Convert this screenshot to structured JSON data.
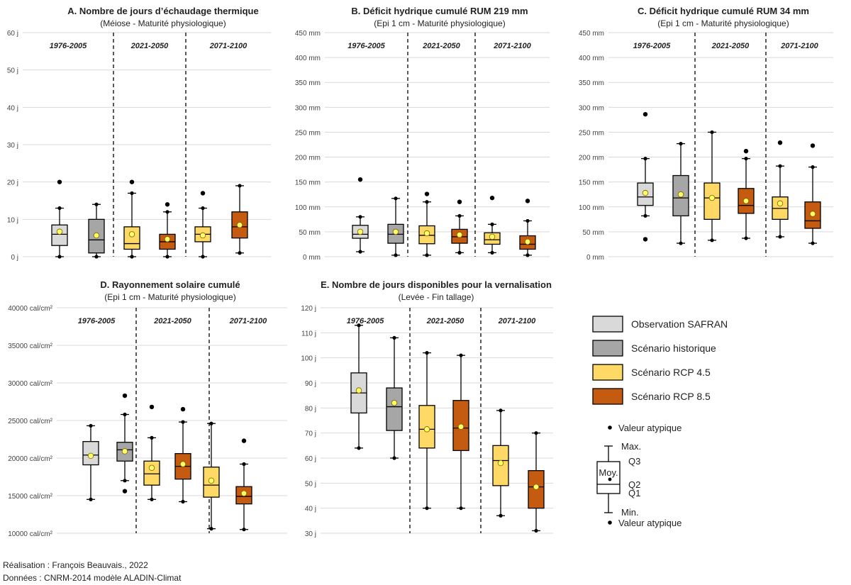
{
  "periods": [
    "1976-2005",
    "2021-2050",
    "2071-2100"
  ],
  "series_names": [
    "Observation SAFRAN",
    "Scénario historique",
    "Scénario RCP 4.5",
    "Scénario RCP 8.5"
  ],
  "colors": {
    "Observation SAFRAN": "#d9d9d9",
    "Scénario historique": "#a6a6a6",
    "Scénario RCP 4.5": "#ffd966",
    "Scénario RCP 8.5": "#c55a11",
    "mean_marker": "#ffff66",
    "divider": "#000000"
  },
  "chart_data": [
    {
      "id": "A",
      "type": "box",
      "title": "A. Nombre de jours d’échaudage thermique",
      "subtitle": "(Méiose - Maturité physiologique)",
      "ylim": [
        0,
        60
      ],
      "yticks": [
        0,
        10,
        20,
        30,
        40,
        50,
        60
      ],
      "yticklabels": [
        "0 j",
        "10 j",
        "20 j",
        "30 j",
        "40 j",
        "50 j",
        "60 j"
      ],
      "boxes": [
        {
          "series": "Observation SAFRAN",
          "period": "1976-2005",
          "min": 0,
          "q1": 3,
          "median": 6,
          "q3": 8.5,
          "max": 13,
          "mean": 6.7,
          "outliers": [
            20
          ]
        },
        {
          "series": "Scénario historique",
          "period": "1976-2005",
          "min": 0,
          "q1": 1,
          "median": 4.5,
          "q3": 10,
          "max": 14,
          "mean": 5.7,
          "outliers": []
        },
        {
          "series": "Scénario RCP 4.5",
          "period": "2021-2050",
          "min": 0,
          "q1": 2,
          "median": 3.5,
          "q3": 8,
          "max": 17,
          "mean": 6,
          "outliers": [
            20
          ]
        },
        {
          "series": "Scénario RCP 8.5",
          "period": "2021-2050",
          "min": 0,
          "q1": 2,
          "median": 4,
          "q3": 6,
          "max": 12,
          "mean": 4.7,
          "outliers": [
            14
          ]
        },
        {
          "series": "Scénario RCP 4.5",
          "period": "2071-2100",
          "min": 0,
          "q1": 4,
          "median": 6,
          "q3": 8,
          "max": 13,
          "mean": 5.7,
          "outliers": [
            17
          ]
        },
        {
          "series": "Scénario RCP 8.5",
          "period": "2071-2100",
          "min": 1,
          "q1": 5,
          "median": 8,
          "q3": 12,
          "max": 19,
          "mean": 8.5,
          "outliers": []
        }
      ]
    },
    {
      "id": "B",
      "type": "box",
      "title": "B. Déficit hydrique cumulé RUM 219 mm",
      "subtitle": "(Epi 1 cm - Maturité physiologique)",
      "ylim": [
        0,
        450
      ],
      "yticks": [
        0,
        50,
        100,
        150,
        200,
        250,
        300,
        350,
        400,
        450
      ],
      "yticklabels": [
        "0 mm",
        "50 mm",
        "100 mm",
        "150 mm",
        "200 mm",
        "250 mm",
        "300 mm",
        "350 mm",
        "400 mm",
        "450 mm"
      ],
      "boxes": [
        {
          "series": "Observation SAFRAN",
          "period": "1976-2005",
          "min": 10,
          "q1": 37,
          "median": 45,
          "q3": 63,
          "max": 80,
          "mean": 50,
          "outliers": [
            155
          ]
        },
        {
          "series": "Scénario historique",
          "period": "1976-2005",
          "min": 3,
          "q1": 27,
          "median": 45,
          "q3": 65,
          "max": 117,
          "mean": 50,
          "outliers": []
        },
        {
          "series": "Scénario RCP 4.5",
          "period": "2021-2050",
          "min": 3,
          "q1": 26,
          "median": 43,
          "q3": 62,
          "max": 110,
          "mean": 47,
          "outliers": [
            126
          ]
        },
        {
          "series": "Scénario RCP 8.5",
          "period": "2021-2050",
          "min": 8,
          "q1": 27,
          "median": 40,
          "q3": 55,
          "max": 82,
          "mean": 44,
          "outliers": [
            110
          ]
        },
        {
          "series": "Scénario RCP 4.5",
          "period": "2071-2100",
          "min": 8,
          "q1": 25,
          "median": 34,
          "q3": 48,
          "max": 65,
          "mean": 40,
          "outliers": [
            118
          ]
        },
        {
          "series": "Scénario RCP 8.5",
          "period": "2071-2100",
          "min": 3,
          "q1": 15,
          "median": 25,
          "q3": 42,
          "max": 72,
          "mean": 30,
          "outliers": [
            112
          ]
        }
      ]
    },
    {
      "id": "C",
      "type": "box",
      "title": "C. Déficit hydrique cumulé RUM 34 mm",
      "subtitle": "(Epi 1 cm - Maturité physiologique)",
      "ylim": [
        0,
        450
      ],
      "yticks": [
        0,
        50,
        100,
        150,
        200,
        250,
        300,
        350,
        400,
        450
      ],
      "yticklabels": [
        "0 mm",
        "50 mm",
        "100 mm",
        "150 mm",
        "200 mm",
        "250 mm",
        "300 mm",
        "350 mm",
        "400 mm",
        "450 mm"
      ],
      "boxes": [
        {
          "series": "Observation SAFRAN",
          "period": "1976-2005",
          "min": 82,
          "q1": 103,
          "median": 120,
          "q3": 148,
          "max": 197,
          "mean": 128,
          "outliers": [
            286,
            35
          ]
        },
        {
          "series": "Scénario historique",
          "period": "1976-2005",
          "min": 27,
          "q1": 82,
          "median": 118,
          "q3": 163,
          "max": 227,
          "mean": 125,
          "outliers": []
        },
        {
          "series": "Scénario RCP 4.5",
          "period": "2021-2050",
          "min": 33,
          "q1": 75,
          "median": 118,
          "q3": 148,
          "max": 250,
          "mean": 118,
          "outliers": []
        },
        {
          "series": "Scénario RCP 8.5",
          "period": "2021-2050",
          "min": 37,
          "q1": 87,
          "median": 103,
          "q3": 137,
          "max": 197,
          "mean": 112,
          "outliers": [
            212
          ]
        },
        {
          "series": "Scénario RCP 4.5",
          "period": "2071-2100",
          "min": 40,
          "q1": 75,
          "median": 97,
          "q3": 120,
          "max": 182,
          "mean": 107,
          "outliers": [
            229
          ]
        },
        {
          "series": "Scénario RCP 8.5",
          "period": "2071-2100",
          "min": 27,
          "q1": 57,
          "median": 72,
          "q3": 110,
          "max": 180,
          "mean": 86,
          "outliers": [
            223
          ]
        }
      ]
    },
    {
      "id": "D",
      "type": "box",
      "title": "D. Rayonnement solaire cumulé",
      "subtitle": "(Epi 1 cm - Maturité physiologique)",
      "ylim": [
        10000,
        40000
      ],
      "yticks": [
        10000,
        15000,
        20000,
        25000,
        30000,
        35000,
        40000
      ],
      "yticklabels": [
        "10000 cal/cm²",
        "15000 cal/cm²",
        "20000 cal/cm²",
        "25000 cal/cm²",
        "30000 cal/cm²",
        "35000 cal/cm²",
        "40000 cal/cm²"
      ],
      "boxes": [
        {
          "series": "Observation SAFRAN",
          "period": "1976-2005",
          "min": 14500,
          "q1": 19100,
          "median": 20400,
          "q3": 22200,
          "max": 24300,
          "mean": 20300,
          "outliers": []
        },
        {
          "series": "Scénario historique",
          "period": "1976-2005",
          "min": 17000,
          "q1": 19600,
          "median": 21100,
          "q3": 22100,
          "max": 25800,
          "mean": 20900,
          "outliers": [
            28300,
            15600
          ]
        },
        {
          "series": "Scénario RCP 4.5",
          "period": "2021-2050",
          "min": 14500,
          "q1": 16400,
          "median": 17900,
          "q3": 19600,
          "max": 22700,
          "mean": 18700,
          "outliers": [
            26800
          ]
        },
        {
          "series": "Scénario RCP 8.5",
          "period": "2021-2050",
          "min": 14200,
          "q1": 17200,
          "median": 18900,
          "q3": 20600,
          "max": 24800,
          "mean": 19200,
          "outliers": [
            26500
          ]
        },
        {
          "series": "Scénario RCP 4.5",
          "period": "2071-2100",
          "min": 10600,
          "q1": 14800,
          "median": 16400,
          "q3": 18800,
          "max": 24600,
          "mean": 17000,
          "outliers": []
        },
        {
          "series": "Scénario RCP 8.5",
          "period": "2071-2100",
          "min": 10500,
          "q1": 13900,
          "median": 14900,
          "q3": 16200,
          "max": 19200,
          "mean": 15300,
          "outliers": [
            22300
          ]
        }
      ]
    },
    {
      "id": "E",
      "type": "box",
      "title": "E. Nombre de jours disponibles pour la vernalisation",
      "subtitle": "(Levée - Fin tallage)",
      "ylim": [
        30,
        120
      ],
      "yticks": [
        30,
        40,
        50,
        60,
        70,
        80,
        90,
        100,
        110,
        120
      ],
      "yticklabels": [
        "30 j",
        "40 j",
        "50 j",
        "60 j",
        "70 j",
        "80 j",
        "90 j",
        "100 j",
        "110 j",
        "120 j"
      ],
      "boxes": [
        {
          "series": "Observation SAFRAN",
          "period": "1976-2005",
          "min": 64,
          "q1": 78,
          "median": 86,
          "q3": 94,
          "max": 113,
          "mean": 87,
          "outliers": []
        },
        {
          "series": "Scénario historique",
          "period": "1976-2005",
          "min": 60,
          "q1": 71,
          "median": 80.5,
          "q3": 88,
          "max": 108,
          "mean": 82,
          "outliers": []
        },
        {
          "series": "Scénario RCP 4.5",
          "period": "2021-2050",
          "min": 40,
          "q1": 64,
          "median": 71.5,
          "q3": 81,
          "max": 102,
          "mean": 71.5,
          "outliers": []
        },
        {
          "series": "Scénario RCP 8.5",
          "period": "2021-2050",
          "min": 40,
          "q1": 63,
          "median": 72,
          "q3": 83,
          "max": 101,
          "mean": 72.5,
          "outliers": []
        },
        {
          "series": "Scénario RCP 4.5",
          "period": "2071-2100",
          "min": 37,
          "q1": 49,
          "median": 59,
          "q3": 65,
          "max": 79,
          "mean": 58,
          "outliers": []
        },
        {
          "series": "Scénario RCP 8.5",
          "period": "2071-2100",
          "min": 31,
          "q1": 40,
          "median": 48.5,
          "q3": 55,
          "max": 70,
          "mean": 48.5,
          "outliers": []
        }
      ]
    }
  ],
  "legend": {
    "outlier_label": "Valeur atypique",
    "max_label": "Max.",
    "q3_label": "Q3",
    "mean_label": "Moy.",
    "q2_label": "Q2",
    "q1_label": "Q1",
    "min_label": "Min.",
    "outlier_label_bottom": "Valeur atypique"
  },
  "footer": {
    "author": "Réalisation : François Beauvais., 2022",
    "source": "Données : CNRM-2014 modèle ALADIN-Climat"
  }
}
